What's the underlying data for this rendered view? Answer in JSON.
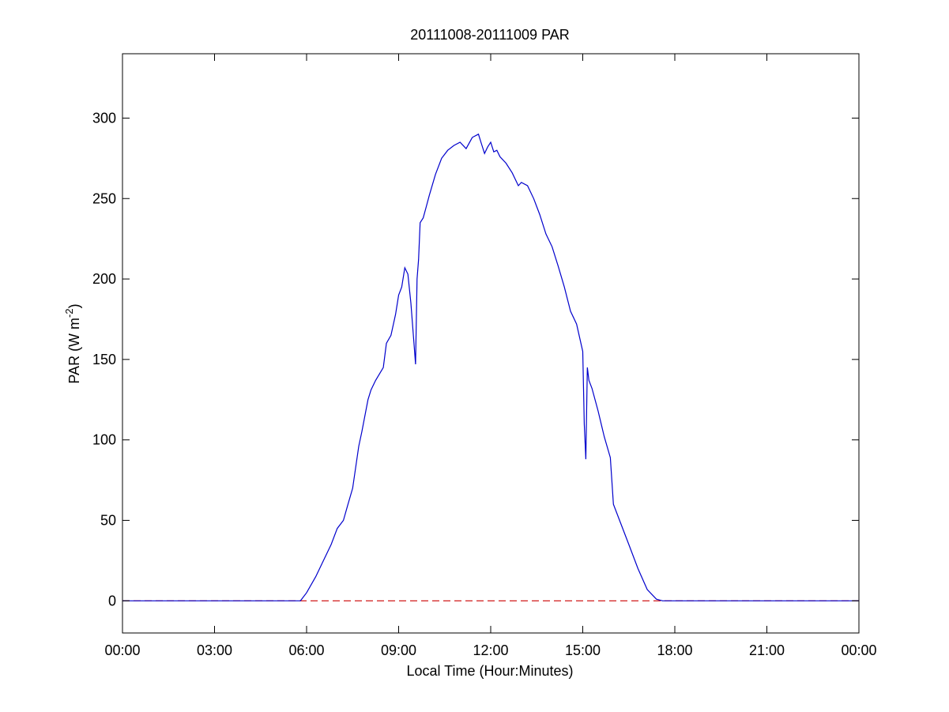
{
  "chart_data": {
    "type": "line",
    "title": "20111008-20111009 PAR",
    "xlabel": "Local Time (Hour:Minutes)",
    "ylabel": {
      "base": "PAR (W m",
      "sup": "-2",
      "close": ")"
    },
    "xlim": [
      0,
      24
    ],
    "ylim": [
      -20,
      340
    ],
    "xticks": [
      {
        "value": 0,
        "label": "00:00"
      },
      {
        "value": 3,
        "label": "03:00"
      },
      {
        "value": 6,
        "label": "06:00"
      },
      {
        "value": 9,
        "label": "09:00"
      },
      {
        "value": 12,
        "label": "12:00"
      },
      {
        "value": 15,
        "label": "15:00"
      },
      {
        "value": 18,
        "label": "18:00"
      },
      {
        "value": 21,
        "label": "21:00"
      },
      {
        "value": 24,
        "label": "00:00"
      }
    ],
    "yticks": [
      {
        "value": 0,
        "label": "0"
      },
      {
        "value": 50,
        "label": "50"
      },
      {
        "value": 100,
        "label": "100"
      },
      {
        "value": 150,
        "label": "150"
      },
      {
        "value": 200,
        "label": "200"
      },
      {
        "value": 250,
        "label": "250"
      },
      {
        "value": 300,
        "label": "300"
      }
    ],
    "grid": false,
    "series": [
      {
        "color": "#0000cc",
        "style": "solid",
        "x": [
          0,
          5.5,
          5.8,
          6.0,
          6.3,
          6.6,
          6.8,
          7.0,
          7.2,
          7.35,
          7.5,
          7.7,
          7.8,
          8.0,
          8.1,
          8.25,
          8.5,
          8.6,
          8.75,
          8.9,
          9.0,
          9.1,
          9.2,
          9.3,
          9.4,
          9.5,
          9.55,
          9.6,
          9.65,
          9.7,
          9.8,
          9.9,
          10.0,
          10.2,
          10.4,
          10.6,
          10.8,
          11.0,
          11.2,
          11.4,
          11.6,
          11.7,
          11.8,
          11.9,
          12.0,
          12.1,
          12.2,
          12.3,
          12.5,
          12.7,
          12.9,
          13.0,
          13.2,
          13.4,
          13.6,
          13.8,
          14.0,
          14.2,
          14.4,
          14.6,
          14.8,
          15.0,
          15.05,
          15.1,
          15.15,
          15.2,
          15.3,
          15.5,
          15.7,
          15.9,
          16.0,
          16.2,
          16.5,
          16.8,
          17.1,
          17.4,
          17.6,
          17.8,
          18.0,
          20.0,
          24
        ],
        "y": [
          0,
          0,
          0,
          5,
          15,
          27,
          35,
          45,
          50,
          60,
          70,
          96,
          105,
          125,
          131,
          137,
          145,
          160,
          165,
          178,
          190,
          195,
          207,
          203,
          185,
          160,
          147,
          200,
          212,
          235,
          238,
          245,
          252,
          265,
          275,
          280,
          283,
          285,
          281,
          288,
          290,
          284,
          278,
          282,
          285,
          279,
          280,
          276,
          272,
          266,
          258,
          260,
          258,
          250,
          240,
          228,
          220,
          208,
          195,
          180,
          172,
          155,
          110,
          88,
          145,
          137,
          132,
          118,
          102,
          89,
          60,
          50,
          35,
          20,
          7,
          1,
          0,
          0,
          0,
          0,
          0
        ]
      },
      {
        "color": "#cc0000",
        "style": "dashed",
        "x": [
          0,
          24
        ],
        "y": [
          0,
          0
        ]
      }
    ]
  }
}
